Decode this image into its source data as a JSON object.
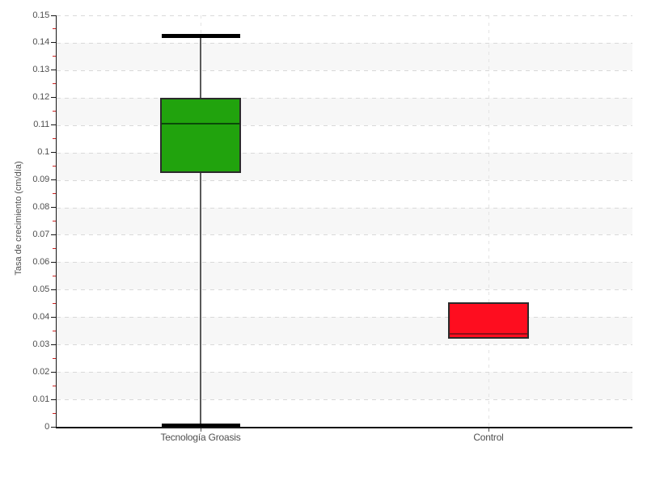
{
  "chart_data": {
    "type": "boxplot",
    "title": "",
    "xlabel": "",
    "ylabel": "Tasa de crecimiento (cm/día)",
    "ylim": [
      0,
      0.15
    ],
    "y_major_step": 0.01,
    "y_minor_step": 0.005,
    "y_tick_labels": [
      "0",
      "0.01",
      "0.02",
      "0.03",
      "0.04",
      "0.05",
      "0.06",
      "0.07",
      "0.08",
      "0.09",
      "0.1",
      "0.11",
      "0.12",
      "0.13",
      "0.14",
      "0.15"
    ],
    "categories": [
      "Tecnología Groasis",
      "Control"
    ],
    "series": [
      {
        "name": "Tecnología Groasis",
        "color": "#21a30d",
        "median_color": "#0a4a08",
        "min": 0.0005,
        "q1": 0.0925,
        "median": 0.1105,
        "q3": 0.12,
        "max": 0.1425,
        "whiskers": true
      },
      {
        "name": "Control",
        "color": "#fe0d1f",
        "median_color": "#8f0f18",
        "min": 0.032,
        "q1": 0.032,
        "median": 0.034,
        "q3": 0.0455,
        "max": 0.0455,
        "whiskers": false
      }
    ],
    "grid": {
      "horizontal_gridlines": "dashed",
      "vertical_gridlines": "dashed",
      "alternating_bands": true,
      "legend": "none"
    },
    "colors": {
      "band": "#f7f7f7",
      "h_gridline": "#d9d9d9",
      "v_gridline": "#e4e4e4",
      "axis": "#151515",
      "major_tick": "#151515",
      "minor_tick": "#cc2222",
      "tick_label": "#4f4f4f",
      "whisker_line": "#5a5a5a",
      "whisker_cap": "#000000"
    }
  }
}
